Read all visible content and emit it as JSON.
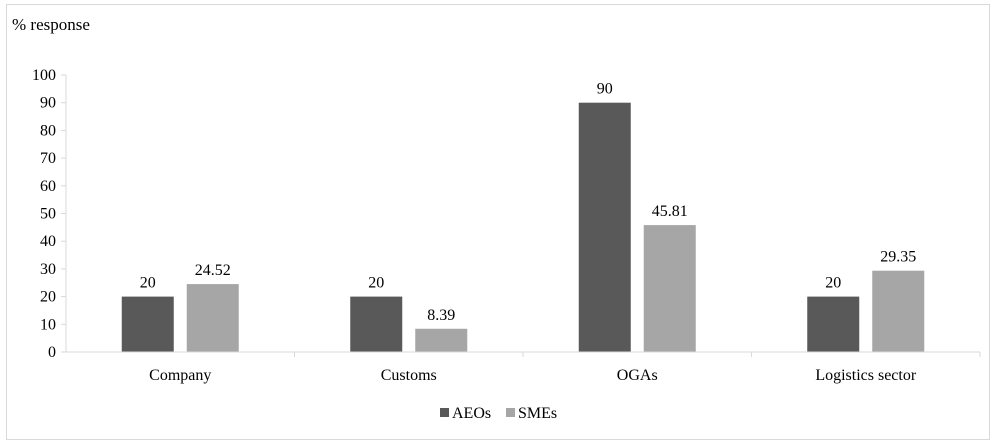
{
  "chart_data": {
    "type": "bar",
    "title": "",
    "xlabel": "",
    "ylabel": "% response",
    "ylim": [
      0,
      100
    ],
    "yticks": [
      0,
      10,
      20,
      30,
      40,
      50,
      60,
      70,
      80,
      90,
      100
    ],
    "categories": [
      "Company",
      "Customs",
      "OGAs",
      "Logistics sector"
    ],
    "series": [
      {
        "name": "AEOs",
        "values": [
          20,
          20,
          90,
          20
        ],
        "labels": [
          "20",
          "20",
          "90",
          "20"
        ],
        "color": "#595959"
      },
      {
        "name": "SMEs",
        "values": [
          24.52,
          8.39,
          45.81,
          29.35
        ],
        "labels": [
          "24.52",
          "8.39",
          "45.81",
          "29.35"
        ],
        "color": "#a6a6a6"
      }
    ],
    "grid": false,
    "legend_position": "bottom"
  }
}
